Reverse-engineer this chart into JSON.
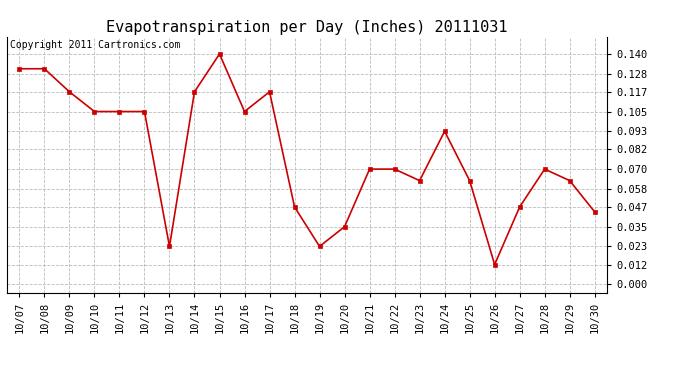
{
  "title": "Evapotranspiration per Day (Inches) 20111031",
  "copyright_text": "Copyright 2011 Cartronics.com",
  "dates": [
    "10/07",
    "10/08",
    "10/09",
    "10/10",
    "10/11",
    "10/12",
    "10/13",
    "10/14",
    "10/15",
    "10/16",
    "10/17",
    "10/18",
    "10/19",
    "10/20",
    "10/21",
    "10/22",
    "10/23",
    "10/24",
    "10/25",
    "10/26",
    "10/27",
    "10/28",
    "10/29",
    "10/30"
  ],
  "values": [
    0.131,
    0.131,
    0.117,
    0.105,
    0.105,
    0.105,
    0.023,
    0.117,
    0.14,
    0.105,
    0.117,
    0.047,
    0.023,
    0.035,
    0.07,
    0.07,
    0.063,
    0.093,
    0.063,
    0.012,
    0.047,
    0.07,
    0.063,
    0.044
  ],
  "line_color": "#cc0000",
  "marker": "s",
  "marker_size": 3,
  "bg_color": "#ffffff",
  "grid_color": "#bbbbbb",
  "yticks": [
    0.0,
    0.012,
    0.023,
    0.035,
    0.047,
    0.058,
    0.07,
    0.082,
    0.093,
    0.105,
    0.117,
    0.128,
    0.14
  ],
  "ylim": [
    -0.005,
    0.15
  ],
  "title_fontsize": 11,
  "tick_fontsize": 7.5,
  "copyright_fontsize": 7
}
